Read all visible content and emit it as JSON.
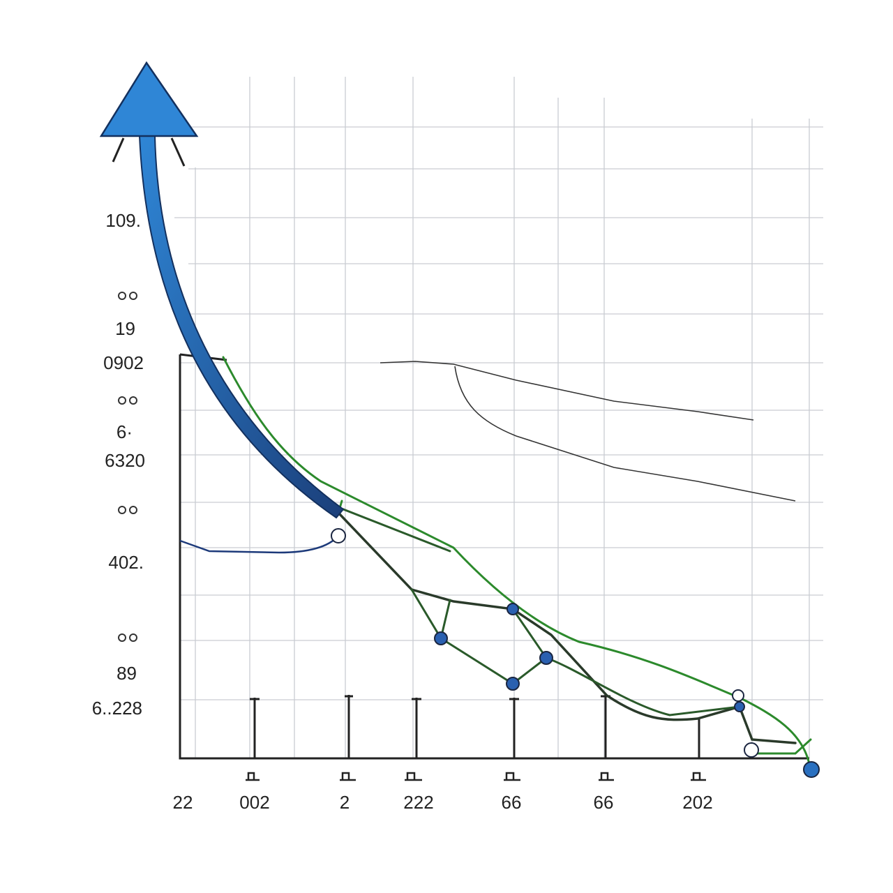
{
  "y_labels": [
    "109.",
    "19",
    "0902",
    "6·",
    "6320",
    "402.",
    "89",
    "6..228"
  ],
  "x_labels": [
    "22",
    "002",
    "2",
    "222",
    "66",
    "66",
    "202"
  ]
}
